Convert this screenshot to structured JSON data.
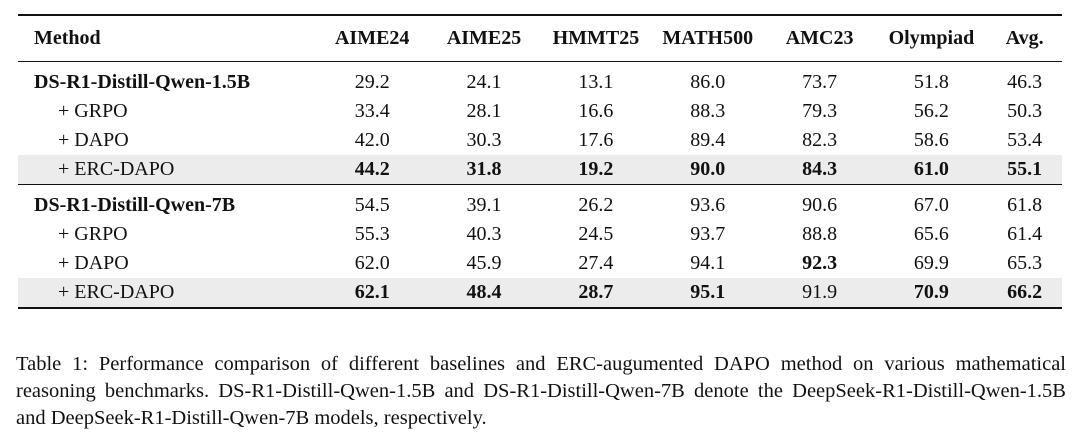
{
  "table": {
    "headers": [
      "Method",
      "AIME24",
      "AIME25",
      "HMMT25",
      "MATH500",
      "AMC23",
      "Olympiad",
      "Avg."
    ],
    "groups": [
      {
        "rows": [
          {
            "method": "DS-R1-Distill-Qwen-1.5B",
            "values": [
              "29.2",
              "24.1",
              "13.1",
              "86.0",
              "73.7",
              "51.8",
              "46.3"
            ]
          },
          {
            "method": "+ GRPO",
            "values": [
              "33.4",
              "28.1",
              "16.6",
              "88.3",
              "79.3",
              "56.2",
              "50.3"
            ]
          },
          {
            "method": "+ DAPO",
            "values": [
              "42.0",
              "30.3",
              "17.6",
              "89.4",
              "82.3",
              "58.6",
              "53.4"
            ]
          },
          {
            "method": "+ ERC-DAPO",
            "values": [
              "44.2",
              "31.8",
              "19.2",
              "90.0",
              "84.3",
              "61.0",
              "55.1"
            ]
          }
        ]
      },
      {
        "rows": [
          {
            "method": "DS-R1-Distill-Qwen-7B",
            "values": [
              "54.5",
              "39.1",
              "26.2",
              "93.6",
              "90.6",
              "67.0",
              "61.8"
            ]
          },
          {
            "method": "+ GRPO",
            "values": [
              "55.3",
              "40.3",
              "24.5",
              "93.7",
              "88.8",
              "65.6",
              "61.4"
            ]
          },
          {
            "method": "+ DAPO",
            "values": [
              "62.0",
              "45.9",
              "27.4",
              "94.1",
              "92.3",
              "69.9",
              "65.3"
            ]
          },
          {
            "method": "+ ERC-DAPO",
            "values": [
              "62.1",
              "48.4",
              "28.7",
              "95.1",
              "91.9",
              "70.9",
              "66.2"
            ]
          }
        ]
      }
    ]
  },
  "caption": "Table 1: Performance comparison of different baselines and ERC-augumented DAPO method on various mathematical reasoning benchmarks. DS-R1-Distill-Qwen-1.5B and DS-R1-Distill-Qwen-7B denote the DeepSeek-R1-Distill-Qwen-1.5B and DeepSeek-R1-Distill-Qwen-7B models, respectively.",
  "colors": {
    "highlight_row": "#ececec",
    "text": "#111111"
  }
}
